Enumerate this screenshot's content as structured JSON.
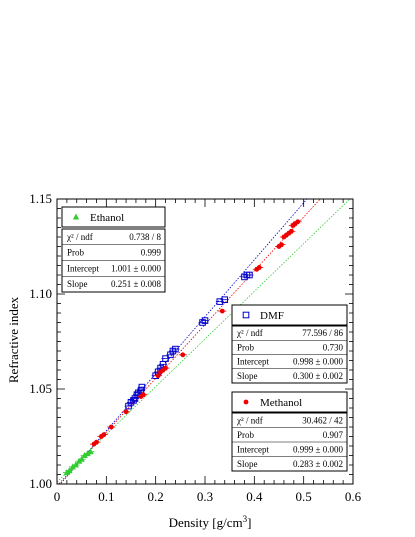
{
  "chart_data": {
    "type": "scatter",
    "xlabel": "Density [g/cm",
    "xlabel_sup": "3",
    "xlabel_suffix": "]",
    "ylabel": "Refractive index",
    "xlim": [
      0,
      0.6
    ],
    "ylim": [
      1.0,
      1.15
    ],
    "xticks": [
      "0",
      "0.1",
      "0.2",
      "0.3",
      "0.4",
      "0.5",
      "0.6"
    ],
    "xtick_values": [
      0,
      0.1,
      0.2,
      0.3,
      0.4,
      0.5,
      0.6
    ],
    "yticks": [
      "1.00",
      "1.05",
      "1.10",
      "1.15"
    ],
    "ytick_values": [
      1.0,
      1.05,
      1.1,
      1.15
    ],
    "series": [
      {
        "name": "Ethanol",
        "color": "#33cc33",
        "marker": "triangle",
        "fit": {
          "intercept": 1.001,
          "slope": 0.251,
          "line_color": "#33cc33"
        },
        "points": [
          [
            0.02,
            1.006
          ],
          [
            0.025,
            1.007
          ],
          [
            0.032,
            1.009
          ],
          [
            0.038,
            1.01
          ],
          [
            0.045,
            1.012
          ],
          [
            0.05,
            1.013
          ],
          [
            0.056,
            1.015
          ],
          [
            0.062,
            1.016
          ],
          [
            0.068,
            1.017
          ]
        ],
        "stats": {
          "chi2_label": "χ² / ndf",
          "chi2": "0.738 / 8",
          "prob_label": "Prob",
          "prob": "0.999",
          "intercept_label": "Intercept",
          "intercept": "1.001 ± 0.000",
          "slope_label": "Slope",
          "slope": "0.251 ± 0.008"
        }
      },
      {
        "name": "DMF",
        "color": "#0000cc",
        "marker": "open-square",
        "fit": {
          "intercept": 0.998,
          "slope": 0.3,
          "line_color": "#0000cc"
        },
        "points": [
          [
            0.145,
            1.041
          ],
          [
            0.15,
            1.043
          ],
          [
            0.155,
            1.044
          ],
          [
            0.158,
            1.045
          ],
          [
            0.162,
            1.047
          ],
          [
            0.165,
            1.048
          ],
          [
            0.17,
            1.049
          ],
          [
            0.172,
            1.051
          ],
          [
            0.2,
            1.057
          ],
          [
            0.205,
            1.059
          ],
          [
            0.21,
            1.061
          ],
          [
            0.215,
            1.063
          ],
          [
            0.22,
            1.066
          ],
          [
            0.23,
            1.068
          ],
          [
            0.235,
            1.07
          ],
          [
            0.24,
            1.071
          ],
          [
            0.295,
            1.085
          ],
          [
            0.3,
            1.086
          ],
          [
            0.33,
            1.096
          ],
          [
            0.34,
            1.097
          ],
          [
            0.38,
            1.109
          ],
          [
            0.385,
            1.11
          ],
          [
            0.39,
            1.11
          ]
        ],
        "stats": {
          "chi2_label": "χ² / ndf",
          "chi2": "77.596 / 86",
          "prob_label": "Prob",
          "prob": "0.730",
          "intercept_label": "Intercept",
          "intercept": "0.998 ± 0.000",
          "slope_label": "Slope",
          "slope": "0.300 ± 0.002"
        }
      },
      {
        "name": "Methanol",
        "color": "#ee0000",
        "marker": "dot",
        "fit": {
          "intercept": 0.999,
          "slope": 0.283,
          "line_color": "#ee0000"
        },
        "points": [
          [
            0.075,
            1.021
          ],
          [
            0.08,
            1.022
          ],
          [
            0.09,
            1.025
          ],
          [
            0.095,
            1.026
          ],
          [
            0.11,
            1.03
          ],
          [
            0.14,
            1.038
          ],
          [
            0.17,
            1.046
          ],
          [
            0.175,
            1.047
          ],
          [
            0.205,
            1.057
          ],
          [
            0.21,
            1.059
          ],
          [
            0.215,
            1.06
          ],
          [
            0.22,
            1.061
          ],
          [
            0.255,
            1.068
          ],
          [
            0.335,
            1.091
          ],
          [
            0.405,
            1.113
          ],
          [
            0.41,
            1.114
          ],
          [
            0.45,
            1.125
          ],
          [
            0.455,
            1.126
          ],
          [
            0.46,
            1.13
          ],
          [
            0.465,
            1.131
          ],
          [
            0.47,
            1.132
          ],
          [
            0.475,
            1.133
          ],
          [
            0.478,
            1.136
          ],
          [
            0.482,
            1.137
          ],
          [
            0.488,
            1.138
          ]
        ],
        "stats": {
          "chi2_label": "χ² / ndf",
          "chi2": "30.462 / 42",
          "prob_label": "Prob",
          "prob": "0.907",
          "intercept_label": "Intercept",
          "intercept": "0.999 ± 0.000",
          "slope_label": "Slope",
          "slope": "0.283 ± 0.002"
        }
      }
    ]
  }
}
